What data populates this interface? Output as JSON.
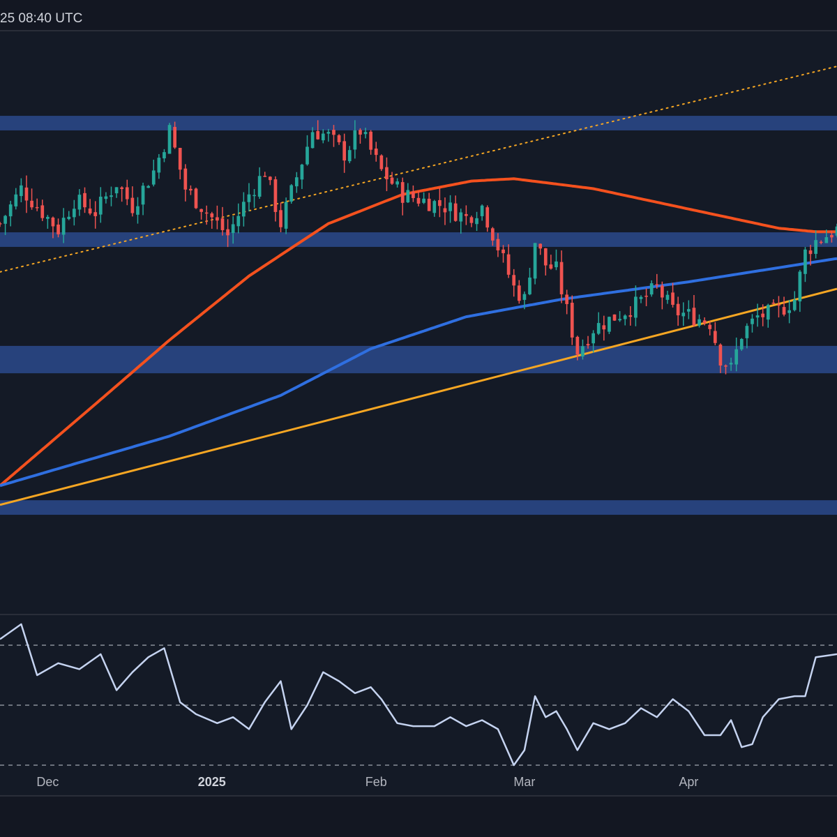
{
  "header": {
    "timestamp": "25 08:40 UTC"
  },
  "colors": {
    "background": "#131722",
    "panel_bg": "#141a26",
    "zone_fill": "#2a4a8c",
    "up_candle": "#26a69a",
    "down_candle": "#ef5350",
    "ma_fast": "#f4511e",
    "ma_slow": "#2f6fe0",
    "trendline": "#f5a623",
    "rsi_line": "#c5d3f0",
    "rsi_guides": "#8a8f99"
  },
  "chart_data": [
    {
      "type": "candlestick",
      "panel": "price",
      "title": "",
      "price_axis_visible": false,
      "y_unit": "price_level_0_100",
      "ylim": [
        0,
        100
      ],
      "x_range": [
        "2024-11-22",
        "2025-04-29"
      ],
      "candles": [],
      "candle_source": "generated from close_path; daily OHLC approximated from the visible wicks and bodies",
      "close_path": [
        {
          "date": "2024-11-22",
          "value": 67
        },
        {
          "date": "2024-11-26",
          "value": 73
        },
        {
          "date": "2024-11-29",
          "value": 70
        },
        {
          "date": "2024-12-03",
          "value": 66
        },
        {
          "date": "2024-12-06",
          "value": 71
        },
        {
          "date": "2024-12-10",
          "value": 69
        },
        {
          "date": "2024-12-14",
          "value": 74
        },
        {
          "date": "2024-12-17",
          "value": 70
        },
        {
          "date": "2024-12-21",
          "value": 76
        },
        {
          "date": "2024-12-24",
          "value": 83
        },
        {
          "date": "2024-12-27",
          "value": 73
        },
        {
          "date": "2024-12-31",
          "value": 69
        },
        {
          "date": "2025-01-04",
          "value": 65
        },
        {
          "date": "2025-01-08",
          "value": 72
        },
        {
          "date": "2025-01-11",
          "value": 76
        },
        {
          "date": "2025-01-14",
          "value": 67
        },
        {
          "date": "2025-01-17",
          "value": 75
        },
        {
          "date": "2025-01-20",
          "value": 83
        },
        {
          "date": "2025-01-23",
          "value": 82
        },
        {
          "date": "2025-01-26",
          "value": 79
        },
        {
          "date": "2025-01-29",
          "value": 83
        },
        {
          "date": "2025-02-02",
          "value": 76
        },
        {
          "date": "2025-02-06",
          "value": 72
        },
        {
          "date": "2025-02-10",
          "value": 71
        },
        {
          "date": "2025-02-14",
          "value": 70
        },
        {
          "date": "2025-02-18",
          "value": 68
        },
        {
          "date": "2025-02-21",
          "value": 70
        },
        {
          "date": "2025-02-24",
          "value": 63
        },
        {
          "date": "2025-02-27",
          "value": 56
        },
        {
          "date": "2025-03-01",
          "value": 54
        },
        {
          "date": "2025-03-03",
          "value": 64
        },
        {
          "date": "2025-03-05",
          "value": 60
        },
        {
          "date": "2025-03-07",
          "value": 59
        },
        {
          "date": "2025-03-09",
          "value": 52
        },
        {
          "date": "2025-03-11",
          "value": 45
        },
        {
          "date": "2025-03-14",
          "value": 49
        },
        {
          "date": "2025-03-18",
          "value": 51
        },
        {
          "date": "2025-03-22",
          "value": 53
        },
        {
          "date": "2025-03-26",
          "value": 56
        },
        {
          "date": "2025-03-29",
          "value": 52
        },
        {
          "date": "2025-04-02",
          "value": 51
        },
        {
          "date": "2025-04-05",
          "value": 50
        },
        {
          "date": "2025-04-07",
          "value": 44
        },
        {
          "date": "2025-04-09",
          "value": 42
        },
        {
          "date": "2025-04-11",
          "value": 48
        },
        {
          "date": "2025-04-14",
          "value": 51
        },
        {
          "date": "2025-04-18",
          "value": 52
        },
        {
          "date": "2025-04-21",
          "value": 54
        },
        {
          "date": "2025-04-23",
          "value": 62
        },
        {
          "date": "2025-04-25",
          "value": 64
        },
        {
          "date": "2025-04-29",
          "value": 66
        }
      ],
      "zones": [
        {
          "low": 83,
          "high": 85.5
        },
        {
          "low": 63,
          "high": 65.5
        },
        {
          "low": 41.3,
          "high": 46
        },
        {
          "low": 17,
          "high": 19.5
        }
      ],
      "moving_averages": [
        {
          "color_key": "ma_fast",
          "points": [
            {
              "date": "2024-11-22",
              "value": 22
            },
            {
              "date": "2024-12-10",
              "value": 36
            },
            {
              "date": "2024-12-24",
              "value": 47
            },
            {
              "date": "2025-01-08",
              "value": 58
            },
            {
              "date": "2025-01-23",
              "value": 67
            },
            {
              "date": "2025-02-06",
              "value": 72
            },
            {
              "date": "2025-02-19",
              "value": 74.3
            },
            {
              "date": "2025-02-27",
              "value": 74.7
            },
            {
              "date": "2025-03-14",
              "value": 73
            },
            {
              "date": "2025-04-01",
              "value": 69.5
            },
            {
              "date": "2025-04-18",
              "value": 66.2
            },
            {
              "date": "2025-04-25",
              "value": 65.6
            },
            {
              "date": "2025-04-29",
              "value": 65.6
            }
          ]
        },
        {
          "color_key": "ma_slow",
          "points": [
            {
              "date": "2024-11-22",
              "value": 22
            },
            {
              "date": "2024-12-24",
              "value": 30.5
            },
            {
              "date": "2025-01-14",
              "value": 37.5
            },
            {
              "date": "2025-01-31",
              "value": 45.5
            },
            {
              "date": "2025-02-18",
              "value": 51
            },
            {
              "date": "2025-03-08",
              "value": 54
            },
            {
              "date": "2025-04-01",
              "value": 57
            },
            {
              "date": "2025-04-29",
              "value": 61
            }
          ]
        }
      ],
      "trendlines": [
        {
          "style": "solid",
          "color_key": "trendline",
          "start": {
            "date": "2024-11-22",
            "value": 18.7
          },
          "end": {
            "date": "2025-04-29",
            "value": 55.8
          }
        },
        {
          "style": "dotted",
          "color_key": "trendline",
          "start": {
            "date": "2024-11-22",
            "value": 58.7
          },
          "end": {
            "date": "2025-04-29",
            "value": 94
          }
        }
      ],
      "grid": false,
      "legend": "none"
    },
    {
      "type": "line",
      "panel": "indicator",
      "title": "",
      "y_axis_visible": false,
      "ylim": [
        20,
        80
      ],
      "reference_lines": [
        70,
        50,
        30
      ],
      "series": [
        {
          "values": [
            {
              "date": "2024-11-22",
              "value": 72
            },
            {
              "date": "2024-11-26",
              "value": 77
            },
            {
              "date": "2024-11-29",
              "value": 60
            },
            {
              "date": "2024-12-03",
              "value": 64
            },
            {
              "date": "2024-12-07",
              "value": 62
            },
            {
              "date": "2024-12-11",
              "value": 67
            },
            {
              "date": "2024-12-14",
              "value": 55
            },
            {
              "date": "2024-12-17",
              "value": 61
            },
            {
              "date": "2024-12-20",
              "value": 66
            },
            {
              "date": "2024-12-23",
              "value": 69
            },
            {
              "date": "2024-12-26",
              "value": 51
            },
            {
              "date": "2024-12-29",
              "value": 47
            },
            {
              "date": "2025-01-02",
              "value": 44
            },
            {
              "date": "2025-01-05",
              "value": 46
            },
            {
              "date": "2025-01-08",
              "value": 42
            },
            {
              "date": "2025-01-11",
              "value": 51
            },
            {
              "date": "2025-01-14",
              "value": 58
            },
            {
              "date": "2025-01-16",
              "value": 42
            },
            {
              "date": "2025-01-19",
              "value": 50
            },
            {
              "date": "2025-01-22",
              "value": 61
            },
            {
              "date": "2025-01-25",
              "value": 58
            },
            {
              "date": "2025-01-28",
              "value": 54
            },
            {
              "date": "2025-01-31",
              "value": 56
            },
            {
              "date": "2025-02-02",
              "value": 52
            },
            {
              "date": "2025-02-05",
              "value": 44
            },
            {
              "date": "2025-02-08",
              "value": 43
            },
            {
              "date": "2025-02-12",
              "value": 43
            },
            {
              "date": "2025-02-15",
              "value": 46
            },
            {
              "date": "2025-02-18",
              "value": 43
            },
            {
              "date": "2025-02-21",
              "value": 45
            },
            {
              "date": "2025-02-24",
              "value": 42
            },
            {
              "date": "2025-02-27",
              "value": 30
            },
            {
              "date": "2025-03-01",
              "value": 35
            },
            {
              "date": "2025-03-03",
              "value": 53
            },
            {
              "date": "2025-03-05",
              "value": 46
            },
            {
              "date": "2025-03-07",
              "value": 48
            },
            {
              "date": "2025-03-09",
              "value": 42
            },
            {
              "date": "2025-03-11",
              "value": 35
            },
            {
              "date": "2025-03-14",
              "value": 44
            },
            {
              "date": "2025-03-17",
              "value": 42
            },
            {
              "date": "2025-03-20",
              "value": 44
            },
            {
              "date": "2025-03-23",
              "value": 49
            },
            {
              "date": "2025-03-26",
              "value": 46
            },
            {
              "date": "2025-03-29",
              "value": 52
            },
            {
              "date": "2025-04-01",
              "value": 48
            },
            {
              "date": "2025-04-04",
              "value": 40
            },
            {
              "date": "2025-04-07",
              "value": 40
            },
            {
              "date": "2025-04-09",
              "value": 45
            },
            {
              "date": "2025-04-11",
              "value": 36
            },
            {
              "date": "2025-04-13",
              "value": 37
            },
            {
              "date": "2025-04-15",
              "value": 46
            },
            {
              "date": "2025-04-18",
              "value": 52
            },
            {
              "date": "2025-04-21",
              "value": 53
            },
            {
              "date": "2025-04-23",
              "value": 53
            },
            {
              "date": "2025-04-25",
              "value": 66
            },
            {
              "date": "2025-04-29",
              "value": 67
            }
          ]
        }
      ],
      "grid": false,
      "legend": "none"
    }
  ],
  "x_axis": {
    "ticks": [
      {
        "label": "Dec",
        "date": "2024-12-01",
        "bold": false
      },
      {
        "label": "2025",
        "date": "2025-01-01",
        "bold": true
      },
      {
        "label": "Feb",
        "date": "2025-02-01",
        "bold": false
      },
      {
        "label": "Mar",
        "date": "2025-03-01",
        "bold": false
      },
      {
        "label": "Apr",
        "date": "2025-04-01",
        "bold": false
      }
    ]
  }
}
